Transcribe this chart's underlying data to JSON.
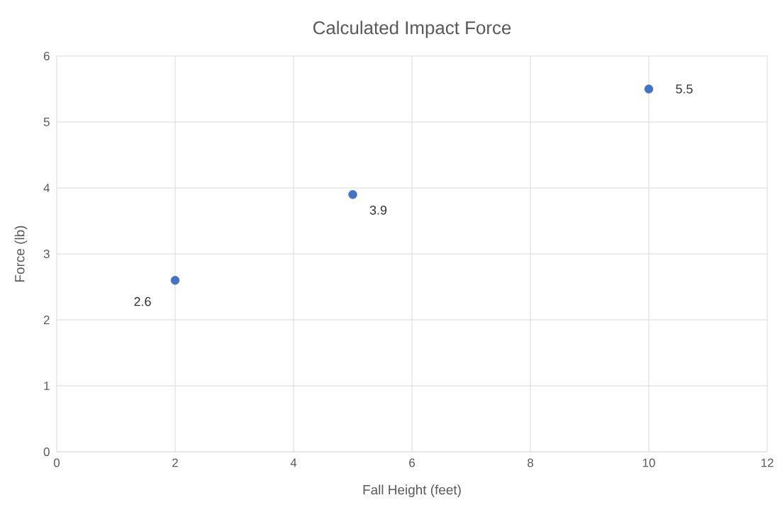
{
  "chart_data": {
    "type": "scatter",
    "title": "Calculated Impact Force",
    "xlabel": "Fall Height (feet)",
    "ylabel": "Force (lb)",
    "x": [
      2,
      5,
      10
    ],
    "values": [
      2.6,
      3.9,
      5.5
    ],
    "color": "#4472c4",
    "marker": "circle",
    "data_labels": true,
    "grid": true,
    "xlim": [
      0,
      12
    ],
    "xticks": [
      0,
      2,
      4,
      6,
      8,
      10,
      12
    ],
    "ylim": [
      0,
      6
    ],
    "yticks": [
      0,
      1,
      2,
      3,
      4,
      5,
      6
    ]
  }
}
